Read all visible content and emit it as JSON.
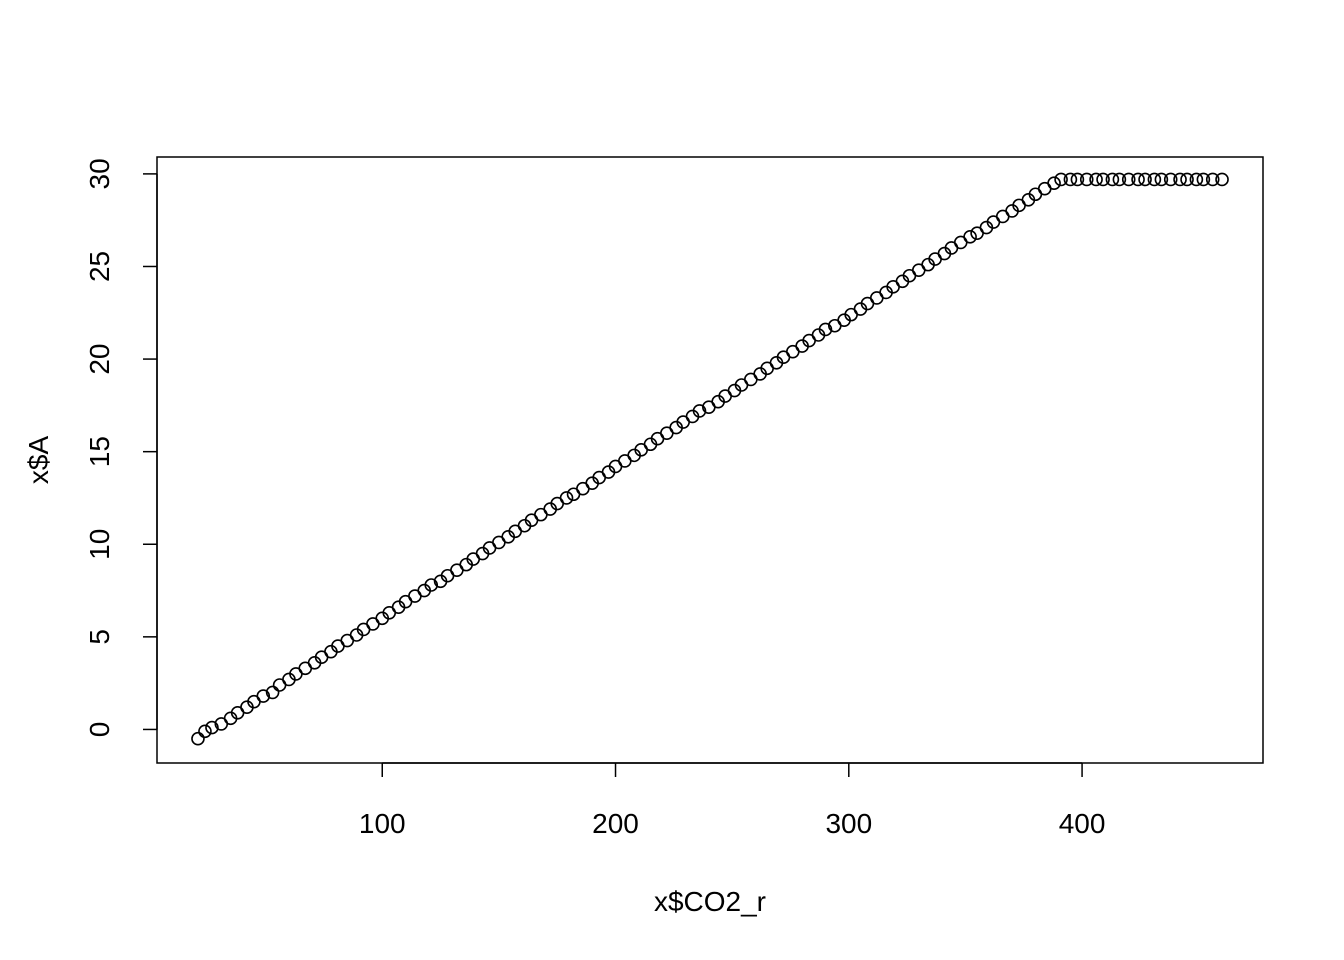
{
  "chart_data": {
    "type": "scatter",
    "title": "",
    "xlabel": "x$CO2_r",
    "ylabel": "x$A",
    "xlim": [
      21,
      460
    ],
    "ylim": [
      -0.6,
      29.7
    ],
    "x_ticks": [
      100,
      200,
      300,
      400
    ],
    "x_tick_labels": [
      "100",
      "200",
      "300",
      "400"
    ],
    "y_ticks": [
      0,
      5,
      10,
      15,
      20,
      25,
      30
    ],
    "y_tick_labels": [
      "0",
      "5",
      "10",
      "15",
      "20",
      "25",
      "30"
    ],
    "grid": false,
    "legend": "none",
    "marker": "open-circle",
    "marker_color": "#000000",
    "series": [
      {
        "x": [
          21,
          24,
          27,
          31,
          35,
          38,
          42,
          45,
          49,
          53,
          56,
          60,
          63,
          67,
          71,
          74,
          78,
          81,
          85,
          89,
          92,
          96,
          100,
          103,
          107,
          110,
          114,
          118,
          121,
          125,
          128,
          132,
          136,
          139,
          143,
          146,
          150,
          154,
          157,
          161,
          164,
          168,
          172,
          175,
          179,
          182,
          186,
          190,
          193,
          197,
          200,
          204,
          208,
          211,
          215,
          218,
          222,
          226,
          229,
          233,
          236,
          240,
          244,
          247,
          251,
          254,
          258,
          262,
          265,
          269,
          272,
          276,
          280,
          283,
          287,
          290,
          294,
          298,
          301,
          305,
          308,
          312,
          316,
          319,
          323,
          326,
          330,
          334,
          337,
          341,
          344,
          348,
          352,
          355,
          359,
          362,
          366,
          370,
          373,
          377,
          380,
          384,
          388,
          391,
          395,
          398,
          402,
          406,
          409,
          413,
          416,
          420,
          424,
          427,
          431,
          434,
          438,
          442,
          445,
          449,
          452,
          456,
          460
        ],
        "y": [
          -0.5,
          -0.1,
          0.1,
          0.3,
          0.6,
          0.9,
          1.2,
          1.5,
          1.8,
          2.0,
          2.4,
          2.7,
          3.0,
          3.3,
          3.6,
          3.9,
          4.2,
          4.5,
          4.8,
          5.1,
          5.4,
          5.7,
          6.0,
          6.3,
          6.6,
          6.9,
          7.2,
          7.5,
          7.8,
          8.0,
          8.3,
          8.6,
          8.9,
          9.2,
          9.5,
          9.8,
          10.1,
          10.4,
          10.7,
          11.0,
          11.3,
          11.6,
          11.9,
          12.2,
          12.5,
          12.7,
          13.0,
          13.3,
          13.6,
          13.9,
          14.2,
          14.5,
          14.8,
          15.1,
          15.4,
          15.7,
          16.0,
          16.3,
          16.6,
          16.9,
          17.2,
          17.4,
          17.7,
          18.0,
          18.3,
          18.6,
          18.9,
          19.2,
          19.5,
          19.8,
          20.1,
          20.4,
          20.7,
          21.0,
          21.3,
          21.6,
          21.8,
          22.1,
          22.4,
          22.7,
          23.0,
          23.3,
          23.6,
          23.9,
          24.2,
          24.5,
          24.8,
          25.1,
          25.4,
          25.7,
          26.0,
          26.3,
          26.6,
          26.8,
          27.1,
          27.4,
          27.7,
          28.0,
          28.3,
          28.6,
          28.9,
          29.2,
          29.5,
          29.7,
          29.7,
          29.7,
          29.7,
          29.7,
          29.7,
          29.7,
          29.7,
          29.7,
          29.7,
          29.7,
          29.7,
          29.7,
          29.7,
          29.7,
          29.7,
          29.7,
          29.7,
          29.7,
          29.7
        ]
      }
    ]
  },
  "colors": {
    "background": "#ffffff",
    "axis": "#000000",
    "marker": "#000000"
  }
}
